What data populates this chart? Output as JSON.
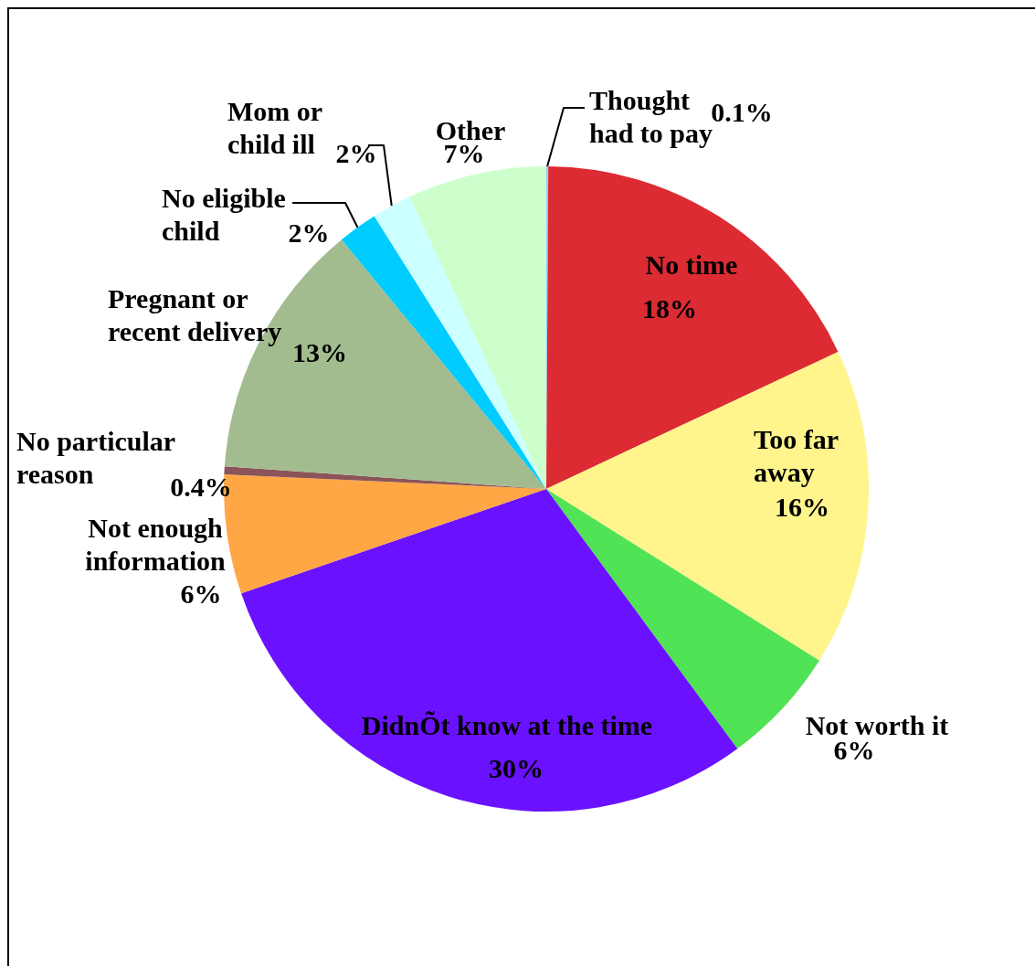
{
  "chart_data": {
    "type": "pie",
    "categories": [
      "Thought had to pay",
      "No time",
      "Too far away",
      "Not worth it",
      "DidnÕt know at the time",
      "Not enough information",
      "No particular reason",
      "Pregnant or recent delivery",
      "No eligible child",
      "Mom or child ill",
      "Other"
    ],
    "values": [
      0.1,
      18,
      16,
      6,
      30,
      6,
      0.4,
      13,
      2,
      2,
      7
    ],
    "colors": [
      "#99ccff",
      "#dc2b33",
      "#fff58c",
      "#50e355",
      "#6a12ff",
      "#ffa645",
      "#8b5458",
      "#a3bc8f",
      "#00ccff",
      "#ccffff",
      "#ccffcc"
    ],
    "value_labels": [
      "0.1%",
      "18%",
      "16%",
      "6%",
      "30%",
      "6%",
      "0.4%",
      "13%",
      "2%",
      "2%",
      "7%"
    ],
    "legend": false
  }
}
